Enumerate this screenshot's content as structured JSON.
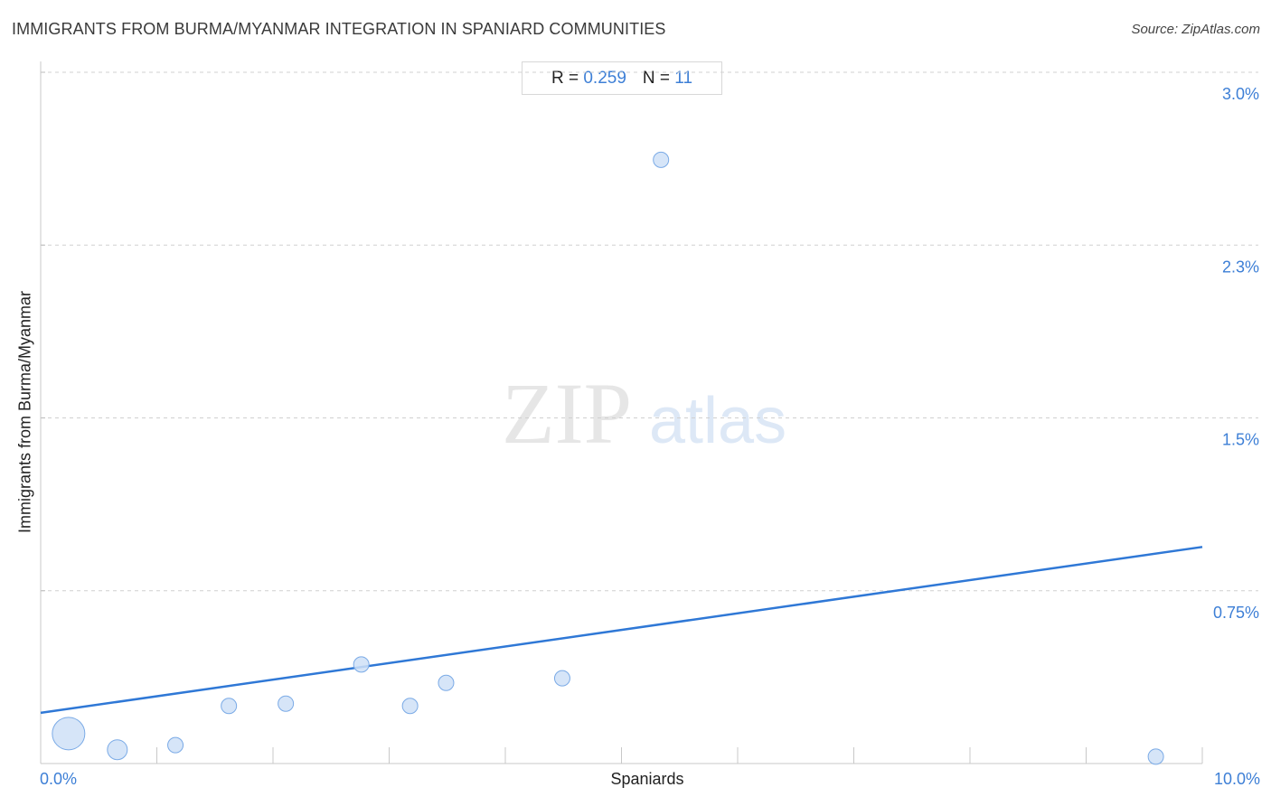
{
  "title": "IMMIGRANTS FROM BURMA/MYANMAR INTEGRATION IN SPANIARD COMMUNITIES",
  "source": "Source: ZipAtlas.com",
  "stats": {
    "r_label": "R =",
    "r_value": "0.259",
    "n_label": "N =",
    "n_value": "11"
  },
  "watermark": {
    "zip": "ZIP",
    "atlas": "atlas"
  },
  "colors": {
    "accent": "#3d7fd6",
    "line": "#2f78d6",
    "point_fill": "#cfe0f7",
    "point_stroke": "#7aaae6",
    "grid": "#d0d0d0"
  },
  "chart_data": {
    "type": "scatter",
    "title": "IMMIGRANTS FROM BURMA/MYANMAR INTEGRATION IN SPANIARD COMMUNITIES",
    "xlabel": "Spaniards",
    "ylabel": "Immigrants from Burma/Myanmar",
    "xlim": [
      0,
      10
    ],
    "ylim": [
      0,
      3.0
    ],
    "x_tick_labels": [
      {
        "value": 0,
        "label": "0.0%"
      },
      {
        "value": 10,
        "label": "10.0%"
      }
    ],
    "y_tick_labels": [
      {
        "value": 3.0,
        "label": "3.0%"
      },
      {
        "value": 2.25,
        "label": "2.3%"
      },
      {
        "value": 1.5,
        "label": "1.5%"
      },
      {
        "value": 0.75,
        "label": "0.75%"
      }
    ],
    "grid": true,
    "points": [
      {
        "x": 0.24,
        "y": 0.13,
        "size": "large"
      },
      {
        "x": 0.66,
        "y": 0.06,
        "size": "medium"
      },
      {
        "x": 1.16,
        "y": 0.08,
        "size": "small"
      },
      {
        "x": 1.62,
        "y": 0.25,
        "size": "small"
      },
      {
        "x": 2.11,
        "y": 0.26,
        "size": "small"
      },
      {
        "x": 2.76,
        "y": 0.43,
        "size": "small"
      },
      {
        "x": 3.18,
        "y": 0.25,
        "size": "small"
      },
      {
        "x": 3.49,
        "y": 0.35,
        "size": "small"
      },
      {
        "x": 4.49,
        "y": 0.37,
        "size": "small"
      },
      {
        "x": 5.34,
        "y": 2.62,
        "size": "small"
      },
      {
        "x": 9.6,
        "y": 0.03,
        "size": "small"
      }
    ],
    "trendline": {
      "x": [
        0,
        10
      ],
      "y": [
        0.22,
        0.94
      ]
    }
  }
}
